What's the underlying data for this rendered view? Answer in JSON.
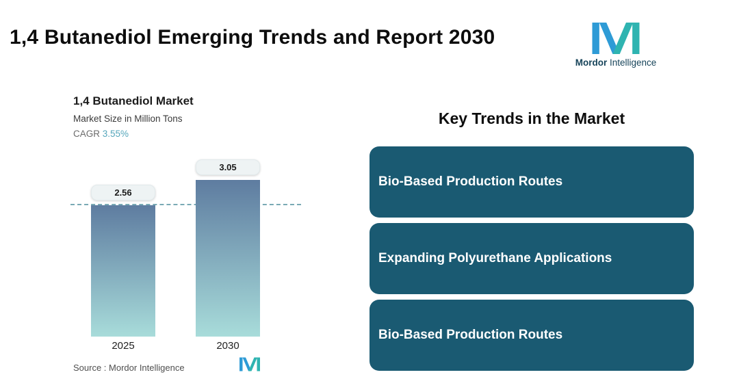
{
  "header": {
    "title": "1,4 Butanediol Emerging Trends and Report 2030",
    "brand_bold": "Mordor",
    "brand_light": "Intelligence"
  },
  "brand_colors": {
    "blue": "#2e9bd6",
    "teal": "#2fb4b1"
  },
  "chart": {
    "cagr_label": "CAGR",
    "cagr_color": "#55a6bb",
    "source": "Source :  Mordor Intelligence"
  },
  "chart_data": {
    "type": "bar",
    "title": "1,4 Butanediol Market",
    "ylabel": "Market Size in Million Tons",
    "cagr": "3.55%",
    "categories": [
      "2025",
      "2030"
    ],
    "values": [
      2.56,
      3.05
    ],
    "ylim": [
      0,
      3.5
    ],
    "grid": false,
    "legend": false,
    "reference_line_value": 2.56,
    "reference_line_color": "#79aab4",
    "bar_gradient_top": "#5e7ca0",
    "bar_gradient_bottom": "#a8dcda"
  },
  "trends": {
    "heading": "Key Trends in the Market",
    "card_color": "#1a5a72",
    "cards": [
      {
        "label": "Bio-Based Production Routes"
      },
      {
        "label": "Expanding Polyurethane Applications"
      },
      {
        "label": "Bio-Based Production Routes"
      }
    ]
  }
}
